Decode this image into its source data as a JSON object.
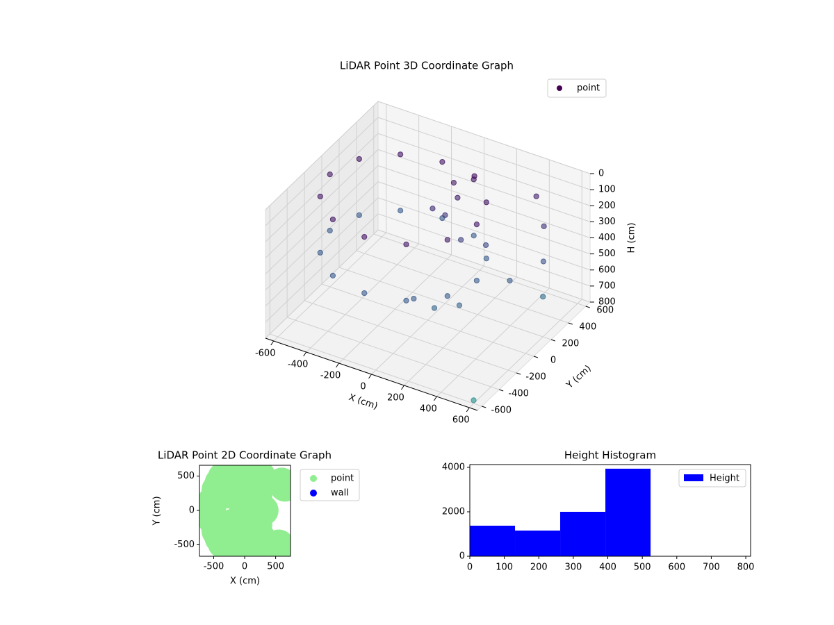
{
  "chart_data": [
    {
      "type": "scatter3d",
      "title": "LiDAR Point 3D Coordinate Graph",
      "x_label": "X (cm)",
      "y_label": "Y (cm)",
      "z_label": "H (cm)",
      "xlim": [
        -650,
        650
      ],
      "ylim": [
        -650,
        650
      ],
      "zlim": [
        800,
        0
      ],
      "xticks": [
        -600,
        -400,
        -200,
        0,
        200,
        400,
        600
      ],
      "yticks": [
        -600,
        -400,
        -200,
        0,
        200,
        400,
        600
      ],
      "zticks": [
        0,
        100,
        200,
        300,
        400,
        500,
        600,
        700,
        800
      ],
      "grid": true,
      "legend": "upper right",
      "cmap": [
        "#440154",
        "#3b528b",
        "#21918c"
      ],
      "series": [
        {
          "name": "point",
          "color": "#440154",
          "x": [
            300,
            240,
            75,
            -150,
            -375,
            -540,
            -600,
            -540,
            -375,
            -150,
            75,
            240,
            300,
            240,
            75,
            -150,
            -375,
            -540,
            -600,
            -540,
            -375,
            -150,
            75,
            240,
            0,
            50,
            100,
            0,
            -50,
            400,
            500,
            550,
            600,
            450,
            300,
            200,
            100,
            150,
            250,
            600
          ],
          "y": [
            0,
            225,
            390,
            450,
            390,
            225,
            0,
            -225,
            -390,
            -450,
            -390,
            -225,
            0,
            225,
            390,
            450,
            390,
            225,
            0,
            -225,
            -390,
            -450,
            -390,
            -225,
            300,
            250,
            350,
            200,
            150,
            500,
            400,
            300,
            200,
            100,
            -200,
            -300,
            -350,
            100,
            200,
            -600
          ],
          "z": [
            100,
            100,
            100,
            100,
            100,
            100,
            100,
            100,
            100,
            100,
            100,
            100,
            450,
            450,
            450,
            450,
            450,
            450,
            450,
            450,
            450,
            450,
            450,
            450,
            100,
            150,
            50,
            250,
            200,
            150,
            250,
            400,
            550,
            450,
            500,
            500,
            450,
            300,
            350,
            780
          ]
        }
      ]
    },
    {
      "type": "scatter",
      "title": "LiDAR Point 2D Coordinate Graph",
      "x_label": "X (cm)",
      "y_label": "Y (cm)",
      "xlim": [
        -730,
        740
      ],
      "ylim": [
        -667,
        657
      ],
      "xticks": [
        -500,
        0,
        500
      ],
      "yticks": [
        -500,
        0,
        500
      ],
      "legend": "outside right",
      "series": [
        {
          "name": "point",
          "color": "#90ee90",
          "x": [
            -550,
            -500,
            -450,
            -400,
            -350,
            -300,
            -250,
            -200,
            -150,
            -100,
            -50,
            0,
            50,
            100,
            150,
            200,
            250,
            -500,
            -450,
            -400,
            -350,
            -300,
            -250,
            -200,
            -150,
            -100,
            -50,
            0,
            50,
            100,
            150,
            200,
            250,
            -300,
            -200,
            -100,
            0,
            100,
            200,
            -300,
            -200,
            -100,
            0,
            100,
            200,
            600,
            650,
            550,
            650,
            300,
            200
          ],
          "y": [
            0,
            150,
            300,
            400,
            480,
            520,
            560,
            580,
            590,
            580,
            560,
            560,
            570,
            590,
            580,
            560,
            500,
            -150,
            -300,
            -400,
            -480,
            -520,
            -560,
            -580,
            -590,
            -580,
            -560,
            -560,
            -570,
            -580,
            -560,
            -500,
            -400,
            250,
            250,
            200,
            250,
            250,
            200,
            -250,
            -200,
            -250,
            -200,
            -250,
            -200,
            400,
            350,
            -500,
            -600,
            0,
            0
          ]
        },
        {
          "name": "wall",
          "color": "#0000ff",
          "x": [],
          "y": []
        }
      ]
    },
    {
      "type": "histogram",
      "title": "Height Histogram",
      "bins": [
        0,
        131,
        262,
        393,
        524,
        655,
        786
      ],
      "counts": [
        1375,
        1156,
        2000,
        3940,
        0,
        0
      ],
      "xlim": [
        0,
        814
      ],
      "ylim": [
        0,
        4125
      ],
      "xticks": [
        0,
        100,
        200,
        300,
        400,
        500,
        600,
        700,
        800
      ],
      "yticks": [
        0,
        2000,
        4000
      ],
      "series": [
        {
          "name": "Height",
          "color": "#0000ff"
        }
      ],
      "legend": "upper right"
    }
  ]
}
